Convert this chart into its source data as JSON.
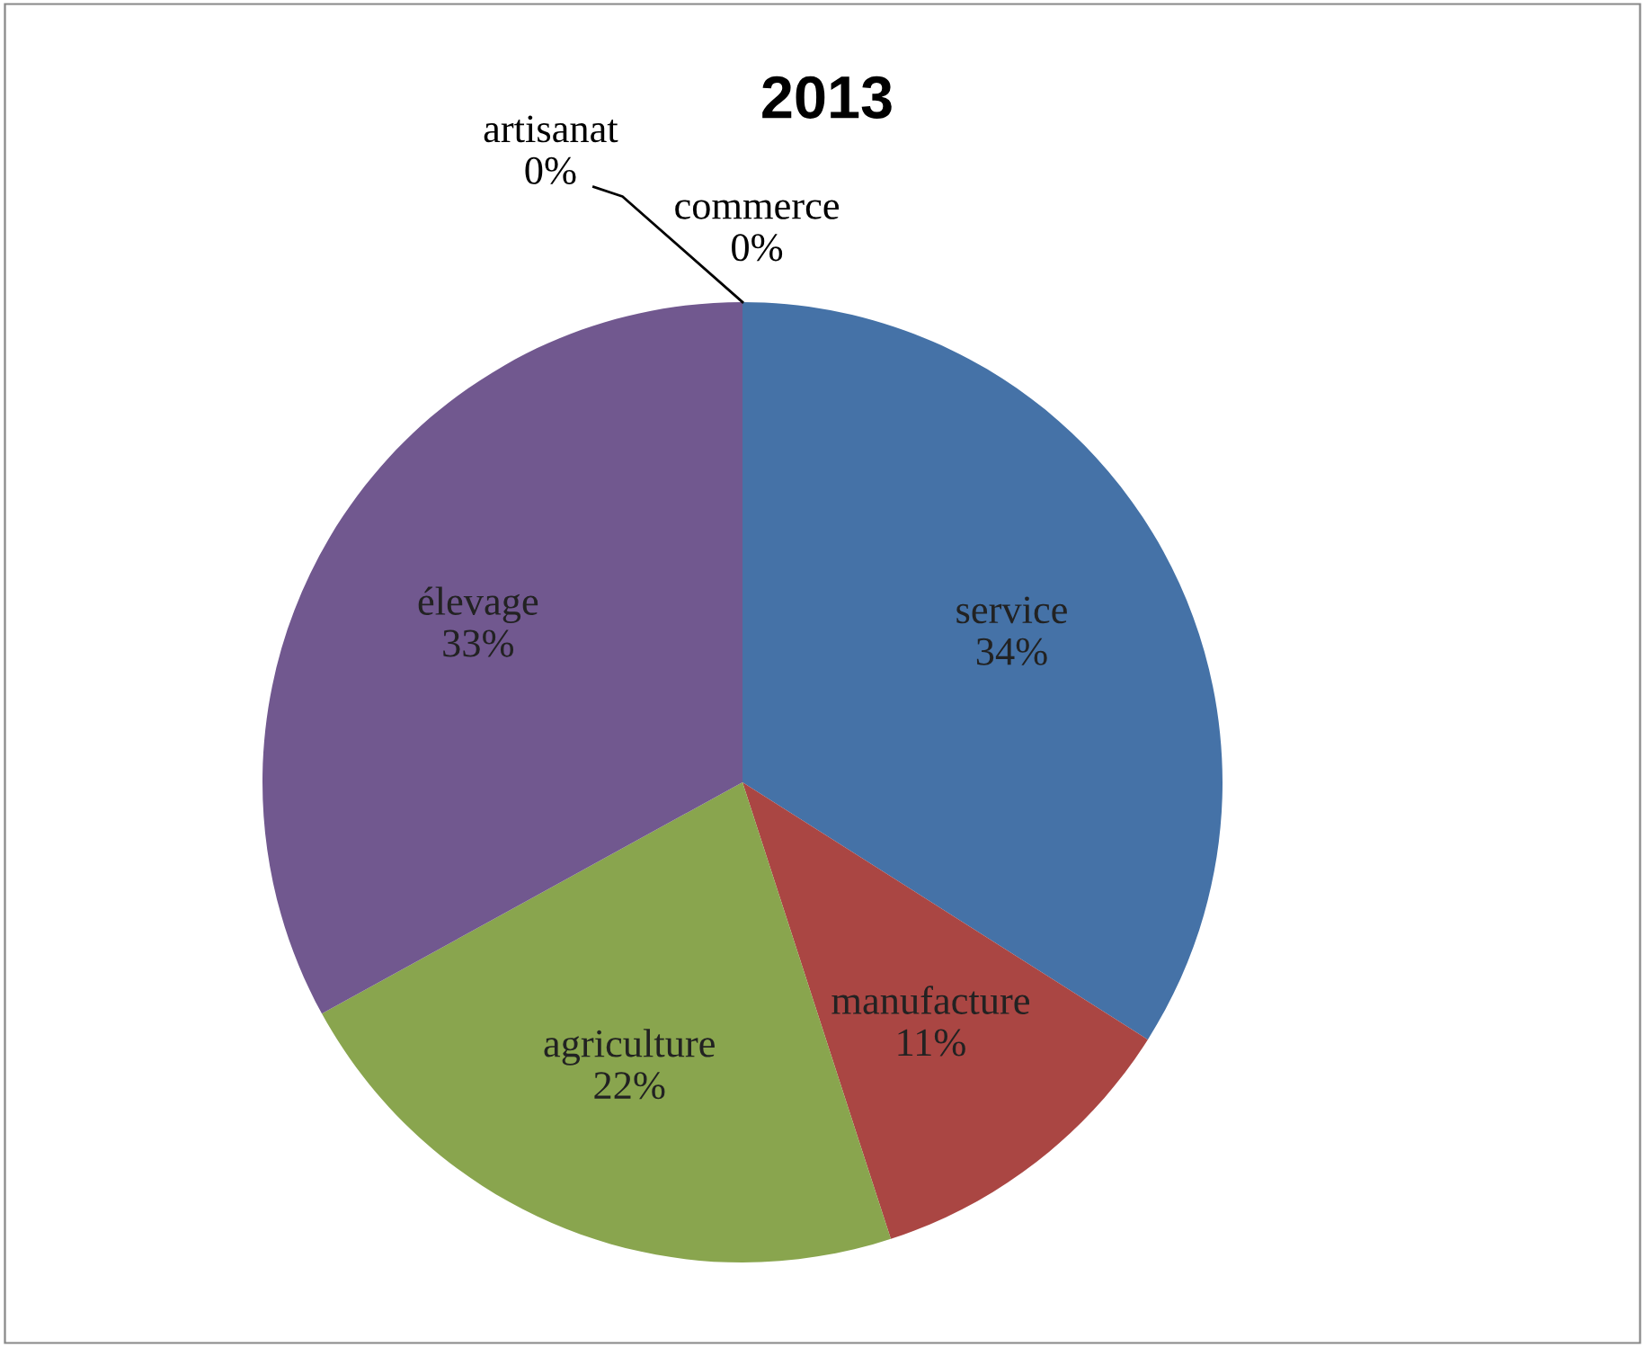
{
  "chart_data": {
    "type": "pie",
    "title": "2013",
    "categories": [
      "service",
      "manufacture",
      "agriculture",
      "élevage",
      "artisanat",
      "commerce"
    ],
    "values": [
      34,
      11,
      22,
      33,
      0,
      0
    ],
    "value_labels": [
      "34%",
      "11%",
      "22%",
      "33%",
      "0%",
      "0%"
    ],
    "colors": [
      "#4572a7",
      "#aa4643",
      "#89a54e",
      "#71588f",
      "#4198af",
      "#db843d"
    ],
    "legend": false
  }
}
